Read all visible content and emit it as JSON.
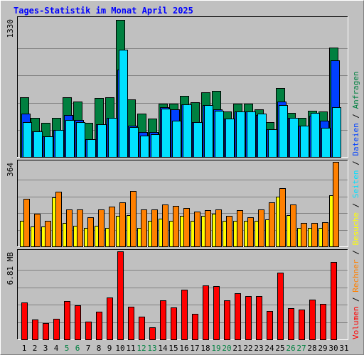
{
  "title": "Tages-Statistik im Monat April 2025",
  "colors": {
    "anfragen": "#008040",
    "dateien": "#0040ff",
    "seiten": "#00e0ff",
    "besuche": "#ffff00",
    "rechner": "#ff8000",
    "volumen": "#ff0000",
    "weekend_label": "#008040",
    "weekday_label": "#000000"
  },
  "chart_data": [
    {
      "type": "bar",
      "panel": "top",
      "ylabel_max": "1330",
      "ymax": 1330,
      "grid": true,
      "categories": [
        "1",
        "2",
        "3",
        "4",
        "5",
        "6",
        "7",
        "8",
        "9",
        "10",
        "11",
        "12",
        "13",
        "14",
        "15",
        "16",
        "17",
        "18",
        "19",
        "20",
        "21",
        "22",
        "23",
        "24",
        "25",
        "26",
        "27",
        "28",
        "29",
        "30",
        "31"
      ],
      "series": [
        {
          "name": "Anfragen",
          "color": "#008040",
          "values": [
            580,
            380,
            330,
            380,
            580,
            540,
            330,
            570,
            580,
            1330,
            560,
            420,
            370,
            520,
            520,
            590,
            530,
            630,
            640,
            440,
            520,
            520,
            460,
            340,
            670,
            430,
            380,
            450,
            440,
            1060,
            null
          ]
        },
        {
          "name": "Dateien",
          "color": "#0040ff",
          "values": [
            420,
            250,
            200,
            260,
            410,
            360,
            170,
            320,
            380,
            850,
            300,
            240,
            240,
            480,
            460,
            510,
            340,
            500,
            460,
            370,
            440,
            440,
            410,
            270,
            540,
            380,
            300,
            400,
            350,
            940,
            null
          ]
        },
        {
          "name": "Seiten",
          "color": "#00e0ff",
          "values": [
            340,
            250,
            200,
            260,
            360,
            340,
            170,
            320,
            380,
            1040,
            290,
            210,
            220,
            470,
            350,
            510,
            340,
            500,
            450,
            370,
            440,
            440,
            420,
            270,
            500,
            380,
            300,
            430,
            280,
            480,
            null
          ]
        }
      ],
      "legend_right": [
        "Anfragen",
        "Dateien",
        "Seiten"
      ]
    },
    {
      "type": "bar",
      "panel": "middle",
      "ylabel_max": "364",
      "ymax": 364,
      "grid": true,
      "categories": [
        "1",
        "2",
        "3",
        "4",
        "5",
        "6",
        "7",
        "8",
        "9",
        "10",
        "11",
        "12",
        "13",
        "14",
        "15",
        "16",
        "17",
        "18",
        "19",
        "20",
        "21",
        "22",
        "23",
        "24",
        "25",
        "26",
        "27",
        "28",
        "29",
        "30",
        "31"
      ],
      "series": [
        {
          "name": "Besuche",
          "color": "#ffff00",
          "values": [
            110,
            85,
            85,
            210,
            100,
            90,
            80,
            90,
            80,
            130,
            135,
            80,
            110,
            120,
            110,
            130,
            110,
            130,
            140,
            110,
            110,
            110,
            110,
            115,
            215,
            135,
            80,
            80,
            80,
            220,
            null
          ]
        },
        {
          "name": "Rechner",
          "color": "#ff8000",
          "values": [
            205,
            140,
            110,
            235,
            160,
            160,
            125,
            160,
            170,
            190,
            240,
            160,
            160,
            180,
            175,
            165,
            150,
            155,
            160,
            130,
            155,
            125,
            160,
            190,
            250,
            180,
            100,
            100,
            105,
            364,
            null
          ]
        }
      ],
      "legend_right": [
        "Besuche",
        "Rechner"
      ]
    },
    {
      "type": "bar",
      "panel": "bottom",
      "ylabel_max": "6.81 MB",
      "ymax": 6.81,
      "unit": "MB",
      "grid": true,
      "categories": [
        "1",
        "2",
        "3",
        "4",
        "5",
        "6",
        "7",
        "8",
        "9",
        "10",
        "11",
        "12",
        "13",
        "14",
        "15",
        "16",
        "17",
        "18",
        "19",
        "20",
        "21",
        "22",
        "23",
        "24",
        "25",
        "26",
        "27",
        "28",
        "29",
        "30",
        "31"
      ],
      "series": [
        {
          "name": "Volumen",
          "color": "#ff0000",
          "values": [
            2.85,
            1.55,
            1.25,
            1.6,
            2.95,
            2.65,
            1.35,
            2.15,
            3.25,
            6.81,
            2.5,
            1.75,
            0.95,
            3.0,
            2.45,
            3.85,
            2.0,
            4.2,
            4.1,
            3.0,
            3.55,
            3.35,
            3.35,
            2.2,
            5.15,
            2.4,
            2.3,
            3.05,
            2.75,
            6.0,
            null
          ]
        }
      ],
      "legend_right": [
        "Volumen"
      ]
    }
  ],
  "legend": [
    {
      "label": "Volumen",
      "color": "#ff0000"
    },
    {
      "label": "Rechner",
      "color": "#ff8000"
    },
    {
      "label": "Besuche",
      "color": "#ffff00"
    },
    {
      "label": "Seiten",
      "color": "#00e0ff"
    },
    {
      "label": "Dateien",
      "color": "#0040ff"
    },
    {
      "label": "Anfragen",
      "color": "#008040"
    }
  ],
  "legend_separator": " / ",
  "xaxis": {
    "labels": [
      "1",
      "2",
      "3",
      "4",
      "5",
      "6",
      "7",
      "8",
      "9",
      "10",
      "11",
      "12",
      "13",
      "14",
      "15",
      "16",
      "17",
      "18",
      "19",
      "20",
      "21",
      "22",
      "23",
      "24",
      "25",
      "26",
      "27",
      "28",
      "29",
      "30",
      "31"
    ],
    "weekend": [
      5,
      6,
      12,
      13,
      19,
      20,
      26,
      27
    ]
  }
}
